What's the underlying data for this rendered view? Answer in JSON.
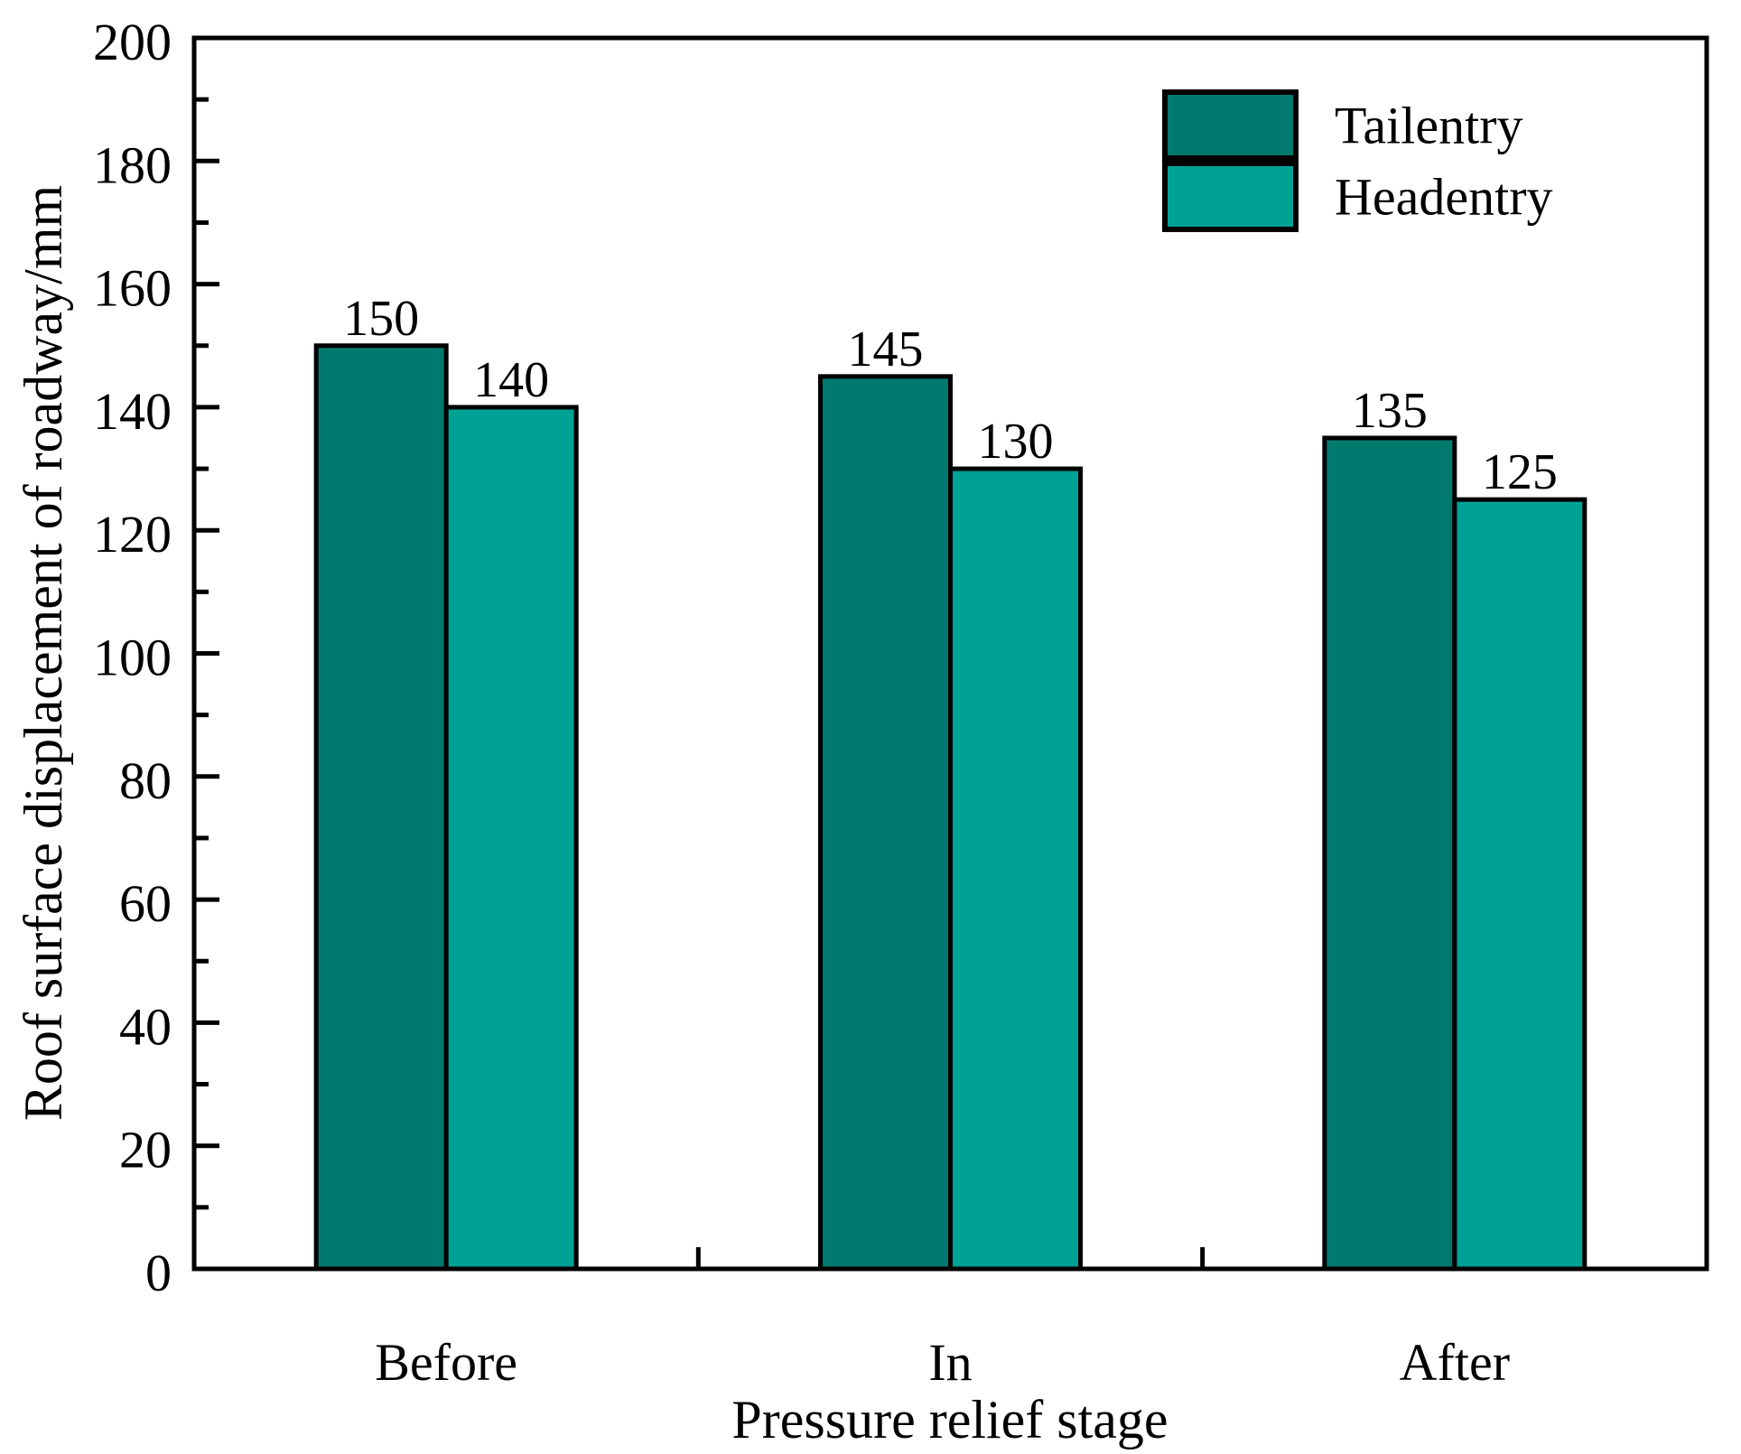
{
  "chart_data": {
    "type": "bar",
    "title": "",
    "categories": [
      "Before",
      "In",
      "After"
    ],
    "series": [
      {
        "name": "Tailentry",
        "color": "#007A6E",
        "values": [
          150,
          145,
          135
        ]
      },
      {
        "name": "Headentry",
        "color": "#00A296",
        "values": [
          140,
          130,
          125
        ]
      }
    ],
    "bar_value_labels": [
      [
        "150",
        "145",
        "135"
      ],
      [
        "140",
        "130",
        "125"
      ]
    ],
    "xlabel": "Pressure relief stage",
    "ylabel": "Roof surface displacement of roadway/mm",
    "ylim": [
      0,
      200
    ],
    "y_major_step": 20,
    "y_minor_step": 10,
    "y_tick_labels": [
      "0",
      "20",
      "40",
      "60",
      "80",
      "100",
      "120",
      "140",
      "160",
      "180",
      "200"
    ],
    "grid": false,
    "legend_position": "top-right",
    "legend": [
      {
        "label": "Tailentry",
        "color": "#007A6E"
      },
      {
        "label": "Headentry",
        "color": "#00A296"
      }
    ],
    "colors": {
      "bar_border": "#000000",
      "axis": "#000000",
      "background": "#ffffff"
    }
  }
}
